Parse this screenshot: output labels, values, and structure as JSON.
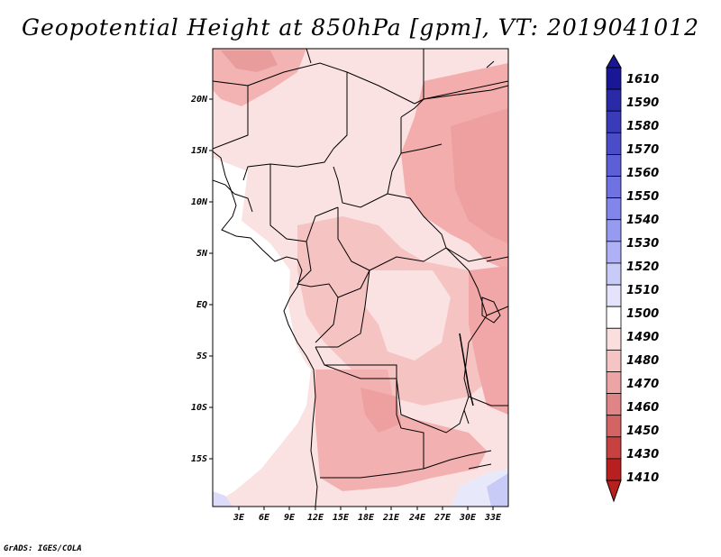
{
  "title": "Geopotential Height at 850hPa [gpm], VT: 2019041012",
  "credit": "GrADS: IGES/COLA",
  "map": {
    "variable": "Geopotential Height",
    "level": "850hPa",
    "units": "gpm",
    "valid_time": "2019041012",
    "lat_labels": [
      "20N",
      "15N",
      "10N",
      "5N",
      "EQ",
      "5S",
      "10S",
      "15S"
    ],
    "lon_labels": [
      "3E",
      "6E",
      "9E",
      "12E",
      "15E",
      "18E",
      "21E",
      "24E",
      "27E",
      "30E",
      "33E"
    ]
  },
  "colorbar": {
    "labels": [
      "1610",
      "1590",
      "1580",
      "1570",
      "1560",
      "1550",
      "1540",
      "1530",
      "1520",
      "1510",
      "1500",
      "1490",
      "1480",
      "1470",
      "1460",
      "1450",
      "1430",
      "1410"
    ],
    "colors": [
      "#1a1796",
      "#2a2aa6",
      "#3a3bb8",
      "#4b4cc8",
      "#5c5fd6",
      "#6e72e2",
      "#8285ea",
      "#979bf0",
      "#aeb1f5",
      "#c8cbf8",
      "#e3e4fb",
      "#ffffff",
      "#fbdede",
      "#f5c4c4",
      "#eda4a4",
      "#e08585",
      "#d46363",
      "#c84141",
      "#b82020"
    ]
  }
}
